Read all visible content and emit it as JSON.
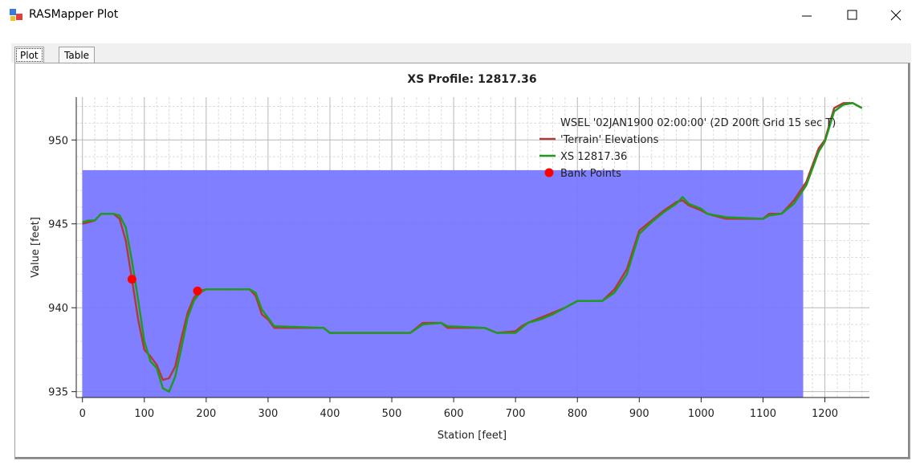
{
  "window": {
    "title": "RASMapper Plot",
    "tabs": [
      "Plot",
      "Table"
    ]
  },
  "chart_data": {
    "type": "line",
    "title": "XS Profile: 12817.36",
    "x_label": "Station [feet]",
    "y_label": "Value [feet]",
    "xlim": [
      -10,
      1272
    ],
    "ylim": [
      934.65,
      952.55
    ],
    "xticks": [
      0,
      100,
      200,
      300,
      400,
      500,
      600,
      700,
      800,
      900,
      1000,
      1100,
      1200
    ],
    "yticks": [
      935,
      940,
      945,
      950
    ],
    "grid": true,
    "legend": "top-right",
    "series": [
      {
        "name": "WSEL '02JAN1900 02:00:00' (2D 200ft Grid 15 sec T)",
        "kind": "area",
        "color": "#7878ff",
        "x": [
          0,
          1165
        ],
        "values": [
          948.2,
          948.2
        ]
      },
      {
        "name": "'Terrain' Elevations",
        "kind": "line",
        "color": "#b03a3a",
        "x": [
          0,
          10,
          20,
          30,
          50,
          60,
          70,
          80,
          90,
          100,
          110,
          120,
          130,
          140,
          150,
          160,
          170,
          180,
          190,
          200,
          270,
          280,
          290,
          300,
          310,
          390,
          400,
          530,
          550,
          580,
          590,
          650,
          670,
          700,
          710,
          720,
          740,
          760,
          780,
          800,
          840,
          860,
          880,
          900,
          920,
          940,
          960,
          970,
          980,
          1000,
          1010,
          1040,
          1100,
          1110,
          1130,
          1150,
          1170,
          1190,
          1200,
          1215,
          1230,
          1245,
          1260
        ],
        "values": [
          945.0,
          945.1,
          945.2,
          945.6,
          945.6,
          945.3,
          944.0,
          941.7,
          939.3,
          937.5,
          937.1,
          936.6,
          935.7,
          935.8,
          936.5,
          938.2,
          939.7,
          940.6,
          941.0,
          941.1,
          941.1,
          940.7,
          939.6,
          939.3,
          938.8,
          938.8,
          938.5,
          938.5,
          939.1,
          939.1,
          938.8,
          938.8,
          938.5,
          938.6,
          938.9,
          939.1,
          939.4,
          939.7,
          940.0,
          940.4,
          940.4,
          941.1,
          942.3,
          944.6,
          945.2,
          945.8,
          946.3,
          946.4,
          946.1,
          945.8,
          945.6,
          945.3,
          945.3,
          945.6,
          945.6,
          946.4,
          947.5,
          949.5,
          950.0,
          951.9,
          952.2,
          952.2,
          951.9
        ]
      },
      {
        "name": "XS 12817.36",
        "kind": "line",
        "color": "#1e9a1e",
        "x": [
          0,
          10,
          20,
          30,
          50,
          60,
          70,
          80,
          90,
          100,
          110,
          120,
          130,
          140,
          150,
          160,
          170,
          180,
          190,
          200,
          270,
          280,
          290,
          300,
          310,
          390,
          400,
          530,
          550,
          580,
          590,
          650,
          670,
          700,
          710,
          720,
          740,
          760,
          780,
          800,
          840,
          860,
          880,
          900,
          920,
          940,
          960,
          970,
          980,
          1000,
          1010,
          1040,
          1100,
          1110,
          1130,
          1150,
          1170,
          1190,
          1200,
          1215,
          1230,
          1245,
          1260
        ],
        "values": [
          945.1,
          945.2,
          945.2,
          945.6,
          945.6,
          945.5,
          944.8,
          942.8,
          940.5,
          938.0,
          936.8,
          936.4,
          935.2,
          935.0,
          935.9,
          937.6,
          939.4,
          940.4,
          940.9,
          941.1,
          941.1,
          940.9,
          939.9,
          939.4,
          938.9,
          938.8,
          938.5,
          938.5,
          939.0,
          939.1,
          938.9,
          938.8,
          938.5,
          938.5,
          938.8,
          939.1,
          939.3,
          939.6,
          940.0,
          940.4,
          940.4,
          940.9,
          942.0,
          944.4,
          945.1,
          945.7,
          946.2,
          946.6,
          946.2,
          945.9,
          945.6,
          945.4,
          945.3,
          945.5,
          945.6,
          946.2,
          947.3,
          949.3,
          949.9,
          951.7,
          952.1,
          952.2,
          951.9
        ]
      },
      {
        "name": "Bank Points",
        "kind": "points",
        "color": "#ff0000",
        "x": [
          80,
          186
        ],
        "values": [
          941.7,
          941.0
        ]
      }
    ]
  }
}
